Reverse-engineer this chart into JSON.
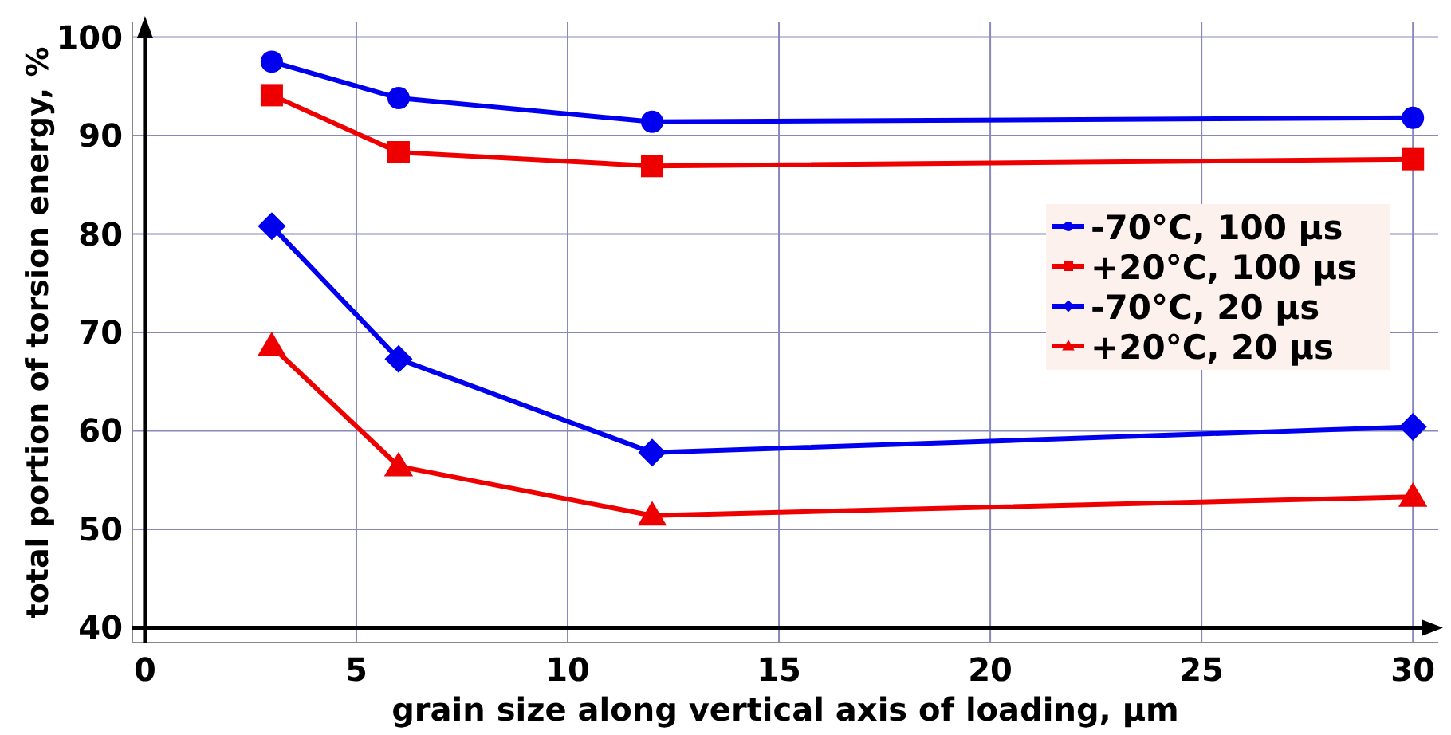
{
  "chart_data": {
    "type": "line",
    "xlabel": "grain size along vertical axis of loading, μm",
    "ylabel": "total portion of torsion energy, %",
    "x": [
      3,
      6,
      12,
      30
    ],
    "series": [
      {
        "name": "-70°C, 100 μs",
        "color": "#0000ee",
        "marker": "circle",
        "values": [
          97.5,
          93.8,
          91.4,
          91.8
        ]
      },
      {
        "name": "+20°C, 100 μs",
        "color": "#ee0000",
        "marker": "square",
        "values": [
          94.1,
          88.3,
          86.9,
          87.6
        ]
      },
      {
        "name": "-70°C, 20 μs",
        "color": "#0000ee",
        "marker": "diamond",
        "values": [
          80.8,
          67.3,
          57.8,
          60.4
        ]
      },
      {
        "name": "+20°C, 20 μs",
        "color": "#ee0000",
        "marker": "triangle",
        "values": [
          68.6,
          56.4,
          51.4,
          53.3
        ]
      }
    ],
    "xlim": [
      -0.3,
      30.6
    ],
    "xticks": [
      0,
      5,
      10,
      15,
      20,
      25,
      30
    ],
    "ylim": [
      38.5,
      101.5
    ],
    "yticks": [
      40,
      50,
      60,
      70,
      80,
      90,
      100
    ],
    "grid": true,
    "legend": "right",
    "line_style": "solid"
  }
}
